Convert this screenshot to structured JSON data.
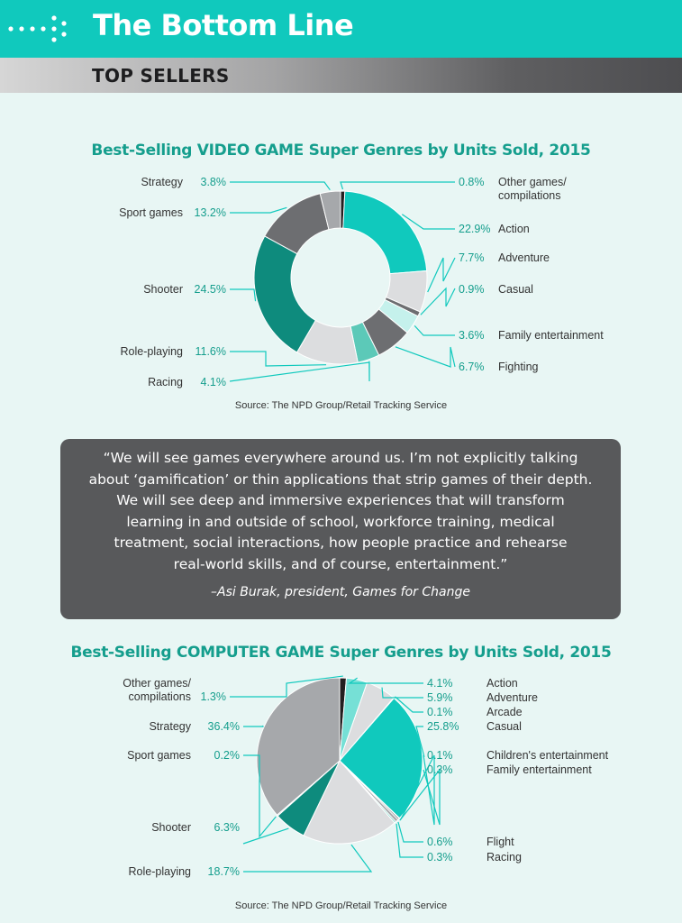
{
  "header": {
    "title": "The Bottom Line",
    "section": "TOP SELLERS"
  },
  "colors": {
    "teal": "#10c9bd",
    "dark_teal": "#0e8b7d",
    "mid_teal": "#5cc9b8",
    "light_teal": "#c5f1ec",
    "dark_gray": "#6d6e71",
    "gray": "#a6a8ab",
    "light_gray": "#dcdddf",
    "black": "#231f20",
    "label_green": "#159e8d"
  },
  "chart_data": [
    {
      "type": "pie",
      "variant": "donut",
      "title": "Best-Selling VIDEO GAME Super Genres by Units Sold, 2015",
      "source": "Source: The NPD Group/Retail Tracking Service",
      "unit": "%",
      "series": [
        {
          "label": "Other games/ compilations",
          "value": 0.8,
          "pct": "0.8%",
          "color": "#231f20"
        },
        {
          "label": "Action",
          "value": 22.9,
          "pct": "22.9%",
          "color": "#10c9bd"
        },
        {
          "label": "Adventure",
          "value": 7.7,
          "pct": "7.7%",
          "color": "#dcdddf"
        },
        {
          "label": "Casual",
          "value": 0.9,
          "pct": "0.9%",
          "color": "#6d6e71"
        },
        {
          "label": "Family entertainment",
          "value": 3.6,
          "pct": "3.6%",
          "color": "#c5f1ec"
        },
        {
          "label": "Fighting",
          "value": 6.7,
          "pct": "6.7%",
          "color": "#6d6e71"
        },
        {
          "label": "Racing",
          "value": 4.1,
          "pct": "4.1%",
          "color": "#5cc9b8"
        },
        {
          "label": "Role-playing",
          "value": 11.6,
          "pct": "11.6%",
          "color": "#dcdddf"
        },
        {
          "label": "Shooter",
          "value": 24.5,
          "pct": "24.5%",
          "color": "#0e8b7d"
        },
        {
          "label": "Sport games",
          "value": 13.2,
          "pct": "13.2%",
          "color": "#6d6e71"
        },
        {
          "label": "Strategy",
          "value": 3.8,
          "pct": "3.8%",
          "color": "#a6a8ab"
        }
      ]
    },
    {
      "type": "pie",
      "title": "Best-Selling COMPUTER GAME Super Genres by Units Sold, 2015",
      "source": "Source: The NPD Group/Retail Tracking Service",
      "unit": "%",
      "series": [
        {
          "label": "Other games/ compilations",
          "value": 1.3,
          "pct": "1.3%",
          "color": "#231f20"
        },
        {
          "label": "Action",
          "value": 4.1,
          "pct": "4.1%",
          "color": "#76e0d6"
        },
        {
          "label": "Adventure",
          "value": 5.9,
          "pct": "5.9%",
          "color": "#dcdddf"
        },
        {
          "label": "Arcade",
          "value": 0.1,
          "pct": "0.1%",
          "color": "#6d6e71"
        },
        {
          "label": "Casual",
          "value": 25.8,
          "pct": "25.8%",
          "color": "#10c9bd"
        },
        {
          "label": "Children's entertainment",
          "value": 0.1,
          "pct": "0.1%",
          "color": "#231f20"
        },
        {
          "label": "Family entertainment",
          "value": 0.3,
          "pct": "0.3%",
          "color": "#6d6e71"
        },
        {
          "label": "Flight",
          "value": 0.6,
          "pct": "0.6%",
          "color": "#a6a8ab"
        },
        {
          "label": "Racing",
          "value": 0.3,
          "pct": "0.3%",
          "color": "#5cc9b8"
        },
        {
          "label": "Role-playing",
          "value": 18.7,
          "pct": "18.7%",
          "color": "#dcdddf"
        },
        {
          "label": "Shooter",
          "value": 6.3,
          "pct": "6.3%",
          "color": "#0e8b7d"
        },
        {
          "label": "Sport games",
          "value": 0.2,
          "pct": "0.2%",
          "color": "#6d6e71"
        },
        {
          "label": "Strategy",
          "value": 36.4,
          "pct": "36.4%",
          "color": "#a6a8ab"
        }
      ]
    }
  ],
  "quote": {
    "lines": [
      "“We will see games everywhere around us. I’m not explicitly talking",
      "about ‘gamification’ or thin applications that strip games of their depth.",
      "We will see deep and immersive experiences that will transform",
      "learning in and outside of school, workforce training, medical",
      "treatment, social interactions, how people practice and rehearse",
      "real-world skills, and of course, entertainment.”"
    ],
    "attribution": "–Asi Burak, president, Games for Change"
  }
}
